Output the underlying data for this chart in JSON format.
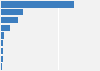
{
  "values": [
    3200,
    950,
    750,
    380,
    130,
    110,
    90,
    80,
    50
  ],
  "bar_color": "#3d7ebf",
  "background_color": "#f2f2f2",
  "grid_color": "#ffffff",
  "figsize": [
    1.0,
    0.71
  ],
  "dpi": 100
}
